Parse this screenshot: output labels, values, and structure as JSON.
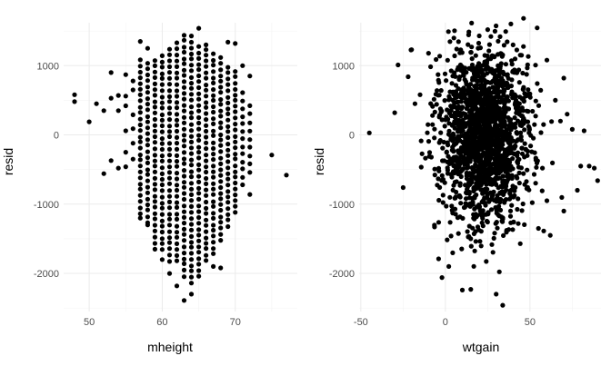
{
  "chart_data": [
    {
      "type": "scatter",
      "xlabel": "mheight",
      "ylabel": "resid",
      "xlim": [
        46.5,
        78.5
      ],
      "ylim": [
        -2550,
        1620
      ],
      "x_ticks": [
        50,
        60,
        70
      ],
      "y_ticks": [
        -2000,
        -1000,
        0,
        1000
      ],
      "x_tick_labels": [
        "50",
        "60",
        "70"
      ],
      "y_tick_labels": [
        "-2000",
        "-1000",
        "0",
        "1000"
      ],
      "grid": true,
      "point_color": "#000000",
      "points": [
        [
          48,
          580
        ],
        [
          48,
          480
        ],
        [
          50,
          190
        ],
        [
          51,
          450
        ],
        [
          52,
          350
        ],
        [
          52,
          -560
        ],
        [
          53,
          900
        ],
        [
          53,
          530
        ],
        [
          53,
          -370
        ],
        [
          54,
          570
        ],
        [
          54,
          350
        ],
        [
          54,
          -480
        ],
        [
          55,
          870
        ],
        [
          55,
          560
        ],
        [
          55,
          420
        ],
        [
          55,
          60
        ],
        [
          55,
          -250
        ],
        [
          55,
          -460
        ],
        [
          56,
          780
        ],
        [
          56,
          650
        ],
        [
          56,
          290
        ],
        [
          56,
          90
        ],
        [
          56,
          -120
        ],
        [
          56,
          -350
        ],
        [
          75,
          -290
        ],
        [
          77,
          -580
        ],
        [
          57,
          1350
        ],
        [
          57,
          -1200
        ],
        [
          58,
          1250
        ],
        [
          58,
          -1300
        ],
        [
          59,
          -1650
        ],
        [
          60,
          -1800
        ],
        [
          61,
          -2000
        ],
        [
          62,
          -2180
        ],
        [
          63,
          -2390
        ],
        [
          64,
          -2300
        ],
        [
          65,
          1540
        ],
        [
          66,
          1300
        ],
        [
          67,
          -1900
        ],
        [
          68,
          -1920
        ],
        [
          69,
          1340
        ],
        [
          70,
          1320
        ],
        [
          71,
          1000
        ],
        [
          72,
          850
        ],
        [
          72,
          -860
        ]
      ],
      "dense_columns": [
        {
          "x": 57,
          "lo": -1130,
          "hi": 1130,
          "step": 85
        },
        {
          "x": 58,
          "lo": -1260,
          "hi": 1100,
          "step": 85
        },
        {
          "x": 59,
          "lo": -1560,
          "hi": 1150,
          "step": 85
        },
        {
          "x": 60,
          "lo": -1660,
          "hi": 1190,
          "step": 85
        },
        {
          "x": 61,
          "lo": -1820,
          "hi": 1310,
          "step": 85
        },
        {
          "x": 62,
          "lo": -1820,
          "hi": 1340,
          "step": 85
        },
        {
          "x": 63,
          "lo": -2040,
          "hi": 1460,
          "step": 85
        },
        {
          "x": 64,
          "lo": -2140,
          "hi": 1440,
          "step": 85
        },
        {
          "x": 65,
          "lo": -2040,
          "hi": 1310,
          "step": 85
        },
        {
          "x": 66,
          "lo": -1820,
          "hi": 1280,
          "step": 85
        },
        {
          "x": 67,
          "lo": -1720,
          "hi": 1240,
          "step": 85
        },
        {
          "x": 68,
          "lo": -1520,
          "hi": 1120,
          "step": 85
        },
        {
          "x": 69,
          "lo": -1320,
          "hi": 1020,
          "step": 85
        },
        {
          "x": 70,
          "lo": -1120,
          "hi": 920,
          "step": 85
        },
        {
          "x": 71,
          "lo": -720,
          "hi": 620,
          "step": 110
        },
        {
          "x": 72,
          "lo": -540,
          "hi": 420,
          "step": 120
        }
      ]
    },
    {
      "type": "scatter",
      "xlabel": "wtgain",
      "ylabel": "resid",
      "xlim": [
        -51,
        92
      ],
      "ylim": [
        -2550,
        1620
      ],
      "x_ticks": [
        -50,
        0,
        50
      ],
      "y_ticks": [
        -2000,
        -1000,
        0,
        1000
      ],
      "x_tick_labels": [
        "-50",
        "0",
        "50"
      ],
      "y_tick_labels": [
        "-2000",
        "-1000",
        "0",
        "1000"
      ],
      "grid": true,
      "point_color": "#000000",
      "points": [
        [
          -45,
          30
        ],
        [
          -30,
          320
        ],
        [
          -28,
          1010
        ],
        [
          -25,
          -760
        ],
        [
          -22,
          840
        ],
        [
          -20,
          1230
        ],
        [
          -18,
          450
        ],
        [
          -15,
          580
        ],
        [
          -10,
          1180
        ],
        [
          -5,
          640
        ],
        [
          -4,
          -1790
        ],
        [
          -2,
          -2060
        ],
        [
          2,
          -1900
        ],
        [
          5,
          1400
        ],
        [
          10,
          -2240
        ],
        [
          15,
          -2230
        ],
        [
          20,
          1430
        ],
        [
          25,
          1520
        ],
        [
          30,
          -2300
        ],
        [
          40,
          1300
        ],
        [
          45,
          1150
        ],
        [
          55,
          -1350
        ],
        [
          60,
          1080
        ],
        [
          62,
          -1450
        ],
        [
          65,
          500
        ],
        [
          70,
          -1100
        ],
        [
          72,
          300
        ],
        [
          75,
          80
        ],
        [
          78,
          -800
        ],
        [
          80,
          -450
        ],
        [
          82,
          60
        ],
        [
          85,
          -450
        ],
        [
          88,
          -480
        ],
        [
          90,
          -660
        ],
        [
          70,
          820
        ],
        [
          60,
          -950
        ],
        [
          58,
          150
        ],
        [
          68,
          200
        ]
      ],
      "dense_cluster": {
        "cx": 23,
        "cy": -40,
        "sx": 13,
        "sy": 650,
        "n": 1700
      }
    }
  ]
}
